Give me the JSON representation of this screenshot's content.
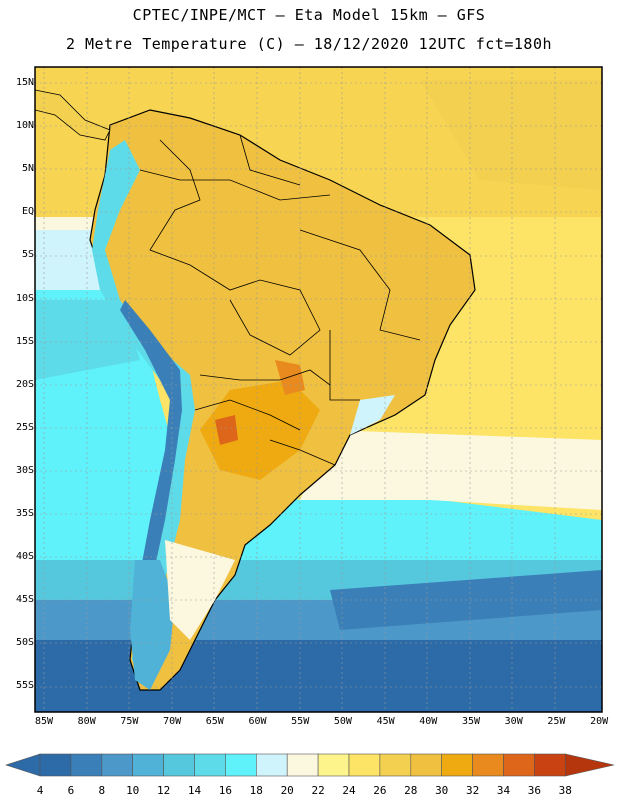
{
  "header": {
    "line1": "CPTEC/INPE/MCT –  Eta Model 15km – GFS",
    "line2": "2 Metre Temperature (C) – 18/12/2020 12UTC fct=180h"
  },
  "map": {
    "region": "South America",
    "lat_ticks": [
      "15N",
      "10N",
      "5N",
      "EQ",
      "5S",
      "10S",
      "15S",
      "20S",
      "25S",
      "30S",
      "35S",
      "40S",
      "45S",
      "50S",
      "55S"
    ],
    "lon_ticks": [
      "85W",
      "80W",
      "75W",
      "70W",
      "65W",
      "60W",
      "55W",
      "50W",
      "45W",
      "40W",
      "35W",
      "30W",
      "25W",
      "20W"
    ]
  },
  "colorbar": {
    "labels": [
      "4",
      "6",
      "8",
      "10",
      "12",
      "14",
      "16",
      "18",
      "20",
      "22",
      "24",
      "26",
      "28",
      "30",
      "32",
      "34",
      "36",
      "38"
    ],
    "colors": [
      "#2c6aa8",
      "#3a7fb8",
      "#4c98c8",
      "#4fb2d6",
      "#55c8de",
      "#5edbe8",
      "#5ff2fa",
      "#cff4fb",
      "#fcf8e0",
      "#fdf48c",
      "#fde466",
      "#f4d050",
      "#f0c040",
      "#eeaa10",
      "#e98a1e",
      "#dd661a",
      "#c84212"
    ]
  }
}
